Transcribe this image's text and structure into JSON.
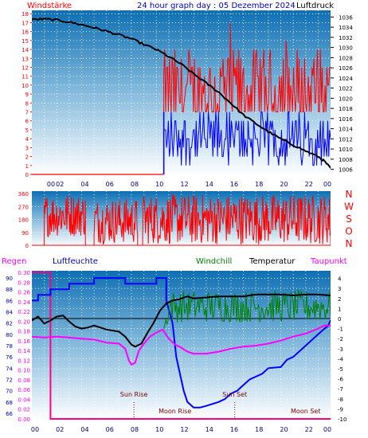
{
  "colors": {
    "wind": "#ff0000",
    "gust_blue": "#0000ff",
    "pressure": "#000000",
    "direction": "#ff0000",
    "humidity": "#0000ff",
    "windchill": "#008000",
    "temperature": "#000000",
    "dewpoint": "#ff00ff",
    "rain": "#ff0080",
    "grid": "#ffffff",
    "panel_top": "#0e6fb3",
    "panel_bottom": "#ffffff"
  },
  "header": {
    "left": "Windstärke",
    "center": "24 hour graph day : 05 Dezember 2024",
    "right": "Luftdruck"
  },
  "mid_header": {
    "regen": "Regen",
    "luftfeuchte": "Luftfeuchte",
    "windchill": "Windchill",
    "temperatur": "Temperatur",
    "taupunkt": "Taupunkt"
  },
  "compass": [
    "N",
    "W",
    "S",
    "O",
    "N"
  ],
  "x_ticks": [
    "00",
    "02",
    "04",
    "06",
    "08",
    "10",
    "12",
    "14",
    "16",
    "18",
    "20",
    "22",
    "00"
  ],
  "events": {
    "sun_rise": {
      "label": "Sun Rise",
      "hour": 8.2
    },
    "sun_set": {
      "label": "Sun Set",
      "hour": 16.3
    },
    "moon_rise": {
      "label": "Moon Rise",
      "hour": 11.5
    },
    "moon_set": {
      "label": "Moon Set",
      "hour": 22.0
    }
  },
  "chart_data": [
    {
      "type": "line",
      "name": "wind-pressure",
      "xlim": [
        0,
        24
      ],
      "left_axis": {
        "label": "Windstärke",
        "ticks": [
          "0",
          "1",
          "2",
          "3",
          "4",
          "5",
          "6",
          "7",
          "8",
          "9",
          "10",
          "11",
          "12",
          "13",
          "14",
          "15",
          "16",
          "17",
          "18"
        ],
        "ylim": [
          0,
          18.2
        ]
      },
      "right_axis": {
        "label": "Luftdruck",
        "ticks": [
          "1006",
          "1008",
          "1010",
          "1012",
          "1014",
          "1016",
          "1018",
          "1020",
          "1022",
          "1024",
          "1026",
          "1028",
          "1030",
          "1032",
          "1034",
          "1036"
        ],
        "ylim": [
          1005,
          1037
        ]
      },
      "pressure": {
        "x": [
          0,
          1,
          2,
          3,
          4,
          5,
          6,
          7,
          8,
          9,
          10,
          11,
          12,
          13,
          14,
          15,
          16,
          17,
          18,
          19,
          20,
          21,
          22,
          23,
          23.5,
          24
        ],
        "y": [
          1035.5,
          1035.6,
          1035.4,
          1035.0,
          1034.5,
          1033.9,
          1033.2,
          1032.5,
          1031.7,
          1030.6,
          1029.6,
          1028.2,
          1026.7,
          1024.8,
          1023.0,
          1021.2,
          1019.0,
          1016.7,
          1015.0,
          1013.4,
          1012.0,
          1010.8,
          1009.6,
          1008.5,
          1007.6,
          1006.2
        ]
      },
      "wind_red_range": {
        "start_hour": 10.6,
        "base": 0,
        "start_level": 7,
        "mean": 9,
        "spread": 5
      },
      "wind_blue_range": {
        "start_hour": 10.6,
        "mean": 4,
        "spread": 3
      }
    },
    {
      "type": "line",
      "name": "wind-direction",
      "xlim": [
        0,
        24
      ],
      "left_axis": {
        "ticks": [
          "0",
          "90",
          "180",
          "270",
          "360"
        ],
        "ylim": [
          0,
          360
        ]
      },
      "right_axis": {
        "ticks": [
          "N",
          "W",
          "S",
          "O",
          "N"
        ]
      },
      "segments": [
        {
          "from": 1.0,
          "to": 4.3,
          "mean": 210,
          "spread": 150
        },
        {
          "from": 5.0,
          "to": 8.5,
          "mean": 170,
          "spread": 160
        },
        {
          "from": 8.9,
          "to": 24,
          "mean": 180,
          "spread": 175
        }
      ]
    },
    {
      "type": "line",
      "name": "humidity-temperature",
      "xlim": [
        0,
        24
      ],
      "left_axis_humidity": {
        "ticks": [
          "66",
          "68",
          "70",
          "72",
          "74",
          "76",
          "78",
          "80",
          "82",
          "84",
          "86",
          "88",
          "90"
        ],
        "ylim": [
          65,
          91
        ]
      },
      "left_axis_rain": {
        "ticks": [
          "0.00",
          "0.02",
          "0.04",
          "0.06",
          "0.08",
          "0.10",
          "0.12",
          "0.14",
          "0.16",
          "0.18",
          "0.20",
          "0.22",
          "0.24",
          "0.26",
          "0.28",
          "0.30"
        ],
        "ylim": [
          0,
          0.3
        ]
      },
      "right_axis_temp": {
        "ticks": [
          "-10",
          "-9",
          "-8",
          "-7",
          "-6",
          "-5",
          "-4",
          "-3",
          "-2",
          "-1",
          "0",
          "1",
          "2",
          "3",
          "4"
        ],
        "ylim": [
          -10,
          4.6
        ]
      },
      "rain": {
        "x": [
          0,
          1.5,
          1.5,
          24
        ],
        "y": [
          0.3,
          0.3,
          0.0,
          0.0
        ]
      },
      "humidity": {
        "x": [
          0,
          0.5,
          0.5,
          1.5,
          1.5,
          3,
          3,
          5,
          5,
          7.5,
          7.5,
          10,
          10,
          10.8,
          10.8,
          11.3,
          11.6,
          12,
          12.2,
          12.5,
          13,
          13.5,
          14,
          15,
          15.5,
          16,
          16.5,
          17,
          17.5,
          18,
          18.5,
          19,
          20,
          20.5,
          21,
          21.5,
          22,
          22.5,
          23,
          23.5,
          23.8,
          24
        ],
        "y": [
          86,
          86,
          87,
          87,
          88,
          88,
          89,
          89,
          90,
          90,
          89,
          89,
          90,
          90,
          86,
          82,
          76,
          72,
          70,
          68,
          67,
          67,
          67.3,
          68,
          68.5,
          69.5,
          70,
          71,
          72,
          72.5,
          73,
          74,
          74.2,
          75.5,
          76,
          77,
          78,
          79,
          80,
          81,
          81.5,
          82.5
        ]
      },
      "temperature": {
        "x": [
          0,
          0.5,
          1,
          1.5,
          2,
          2.5,
          3,
          3.5,
          4,
          4.5,
          5,
          6,
          7,
          7.5,
          8,
          8.3,
          8.8,
          9.3,
          9.8,
          10.3,
          10.8,
          11.3,
          11.8,
          12.5,
          13,
          14,
          15,
          16,
          17,
          18,
          19,
          20,
          21,
          22,
          23,
          24
        ],
        "y": [
          -0.2,
          0.2,
          -0.5,
          -0.2,
          0.2,
          0.3,
          -0.3,
          -0.8,
          -1.0,
          -0.9,
          -0.7,
          -1.1,
          -1.3,
          -1.8,
          -2.6,
          -2.8,
          -2.5,
          -1.4,
          -0.4,
          0.8,
          1.5,
          1.8,
          1.9,
          2.2,
          2.0,
          2.1,
          2.2,
          2.2,
          2.2,
          2.4,
          2.4,
          2.4,
          2.3,
          2.4,
          2.4,
          2.3
        ]
      },
      "windchill": {
        "x": [
          10.6,
          24
        ],
        "mean": 1.2,
        "spread": 1.6
      },
      "dewpoint": {
        "x": [
          0,
          1,
          2,
          3,
          4,
          5,
          6,
          7,
          7.5,
          7.8,
          8,
          8.3,
          8.6,
          9,
          9.5,
          10,
          10.5,
          11,
          11.5,
          12,
          12.5,
          13,
          14,
          15,
          16,
          17,
          18,
          19,
          20,
          21,
          22,
          23,
          23.5,
          24
        ],
        "y": [
          -1.8,
          -1.9,
          -1.8,
          -1.9,
          -2.0,
          -2.1,
          -2.4,
          -2.5,
          -3.0,
          -4.2,
          -4.6,
          -4.4,
          -3.2,
          -2.5,
          -1.8,
          -1.4,
          -1.1,
          -2.0,
          -2.6,
          -2.9,
          -3.3,
          -3.5,
          -3.5,
          -3.3,
          -3.0,
          -2.8,
          -2.7,
          -2.5,
          -2.2,
          -1.8,
          -1.5,
          -1.0,
          -0.7,
          -0.7
        ]
      }
    }
  ]
}
